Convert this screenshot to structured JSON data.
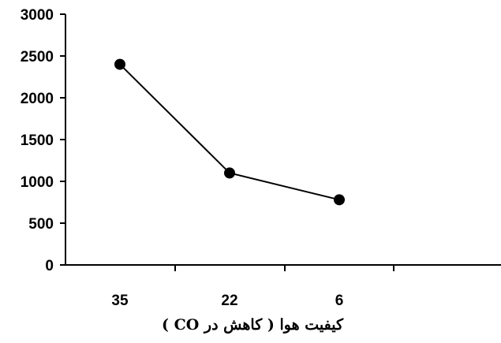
{
  "chart_data": {
    "type": "line",
    "title": "",
    "xlabel": "کیفیت هوا ( کاهش در CO )",
    "ylabel": "",
    "categories": [
      "35",
      "22",
      "6"
    ],
    "series": [
      {
        "values": [
          2400,
          1100,
          780
        ]
      }
    ],
    "ylim": [
      0,
      3000
    ],
    "yticks": [
      "0",
      "500",
      "1000",
      "1500",
      "2000",
      "2500",
      "3000"
    ],
    "grid": false,
    "legend": "none"
  }
}
